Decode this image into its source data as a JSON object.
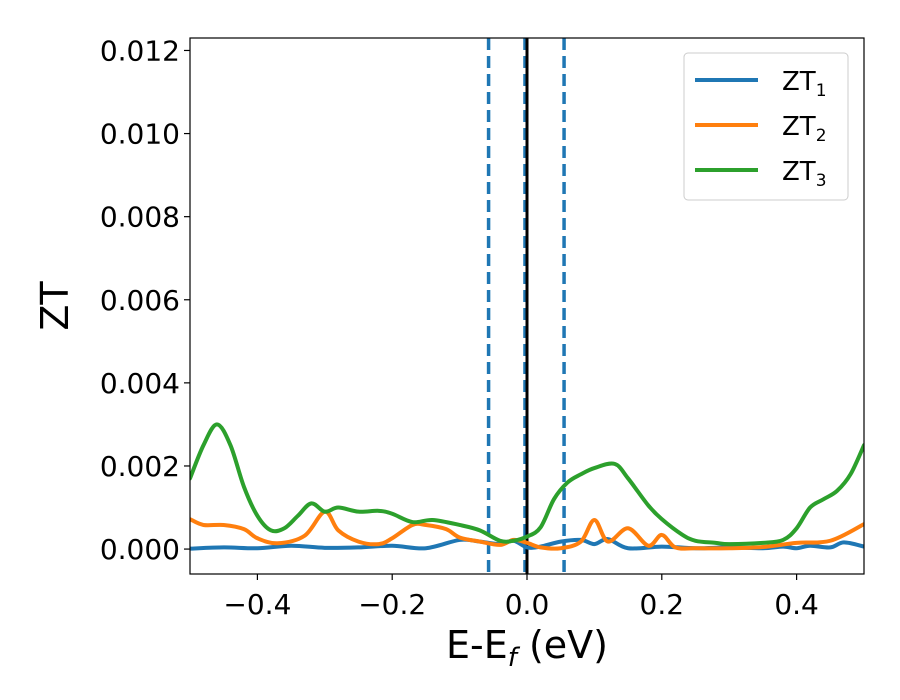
{
  "chart_data": {
    "type": "line",
    "xlabel": "E-E",
    "xlabel_sub": "f",
    "xlabel_unit": " (eV)",
    "ylabel": "ZT",
    "xlim": [
      -0.5,
      0.5
    ],
    "ylim": [
      -0.0006,
      0.0123
    ],
    "x_ticks": [
      -0.4,
      -0.2,
      0.0,
      0.2,
      0.4
    ],
    "x_tick_labels": [
      "−0.4",
      "−0.2",
      "0.0",
      "0.2",
      "0.4"
    ],
    "y_ticks": [
      0.0,
      0.002,
      0.004,
      0.006,
      0.008,
      0.01,
      0.012
    ],
    "y_tick_labels": [
      "0.000",
      "0.002",
      "0.004",
      "0.006",
      "0.008",
      "0.010",
      "0.012"
    ],
    "grid": false,
    "legend_position": "top-right",
    "vertical_lines": [
      {
        "x": -0.057,
        "style": "dashed",
        "color": "#1f77b4"
      },
      {
        "x": -0.003,
        "style": "dashed",
        "color": "#1f77b4"
      },
      {
        "x": 0.0,
        "style": "solid",
        "color": "#000000"
      },
      {
        "x": 0.055,
        "style": "dashed",
        "color": "#1f77b4"
      }
    ],
    "series": [
      {
        "name": "ZT",
        "name_sub": "1",
        "color": "#1f77b4",
        "x": [
          -0.5,
          -0.45,
          -0.4,
          -0.35,
          -0.3,
          -0.25,
          -0.2,
          -0.15,
          -0.1,
          -0.07,
          -0.04,
          -0.02,
          0.0,
          0.02,
          0.05,
          0.08,
          0.1,
          0.12,
          0.15,
          0.2,
          0.25,
          0.3,
          0.35,
          0.38,
          0.4,
          0.42,
          0.45,
          0.47,
          0.5
        ],
        "y": [
          1e-05,
          4e-05,
          2e-05,
          8e-05,
          3e-05,
          4e-05,
          8e-05,
          2e-05,
          0.00022,
          0.00018,
          0.00012,
          0.0002,
          4e-05,
          6e-05,
          0.00018,
          0.00022,
          0.00012,
          0.00024,
          2e-05,
          6e-05,
          2e-05,
          4e-05,
          2e-05,
          6e-05,
          2e-05,
          8e-05,
          4e-05,
          0.00016,
          6e-05
        ]
      },
      {
        "name": "ZT",
        "name_sub": "2",
        "color": "#ff7f0e",
        "x": [
          -0.5,
          -0.48,
          -0.45,
          -0.42,
          -0.4,
          -0.37,
          -0.33,
          -0.3,
          -0.28,
          -0.25,
          -0.22,
          -0.2,
          -0.17,
          -0.15,
          -0.12,
          -0.1,
          -0.07,
          -0.04,
          -0.02,
          0.0,
          0.02,
          0.05,
          0.08,
          0.1,
          0.12,
          0.15,
          0.18,
          0.2,
          0.22,
          0.25,
          0.3,
          0.35,
          0.4,
          0.45,
          0.5
        ],
        "y": [
          0.00072,
          0.00058,
          0.00058,
          0.00048,
          0.00026,
          0.00014,
          0.00032,
          0.0009,
          0.00045,
          0.00018,
          0.00012,
          0.00026,
          0.00058,
          0.00058,
          0.00048,
          0.00028,
          0.00018,
          0.0001,
          0.00022,
          0.00015,
          4e-05,
          2e-05,
          0.00018,
          0.0007,
          0.00018,
          0.0005,
          8e-05,
          0.00034,
          4e-05,
          2e-05,
          2e-05,
          5e-05,
          0.00015,
          0.0002,
          0.0006
        ]
      },
      {
        "name": "ZT",
        "name_sub": "3",
        "color": "#2ca02c",
        "x": [
          -0.5,
          -0.48,
          -0.46,
          -0.44,
          -0.42,
          -0.4,
          -0.38,
          -0.36,
          -0.34,
          -0.32,
          -0.3,
          -0.28,
          -0.25,
          -0.22,
          -0.2,
          -0.17,
          -0.14,
          -0.1,
          -0.07,
          -0.04,
          -0.02,
          0.0,
          0.02,
          0.04,
          0.06,
          0.08,
          0.1,
          0.13,
          0.15,
          0.18,
          0.2,
          0.23,
          0.25,
          0.28,
          0.3,
          0.35,
          0.38,
          0.4,
          0.42,
          0.44,
          0.46,
          0.48,
          0.5
        ],
        "y": [
          0.0017,
          0.0025,
          0.003,
          0.0025,
          0.0015,
          0.0008,
          0.00045,
          0.0005,
          0.0008,
          0.0011,
          0.0009,
          0.001,
          0.0009,
          0.00092,
          0.00085,
          0.00065,
          0.0007,
          0.00058,
          0.00045,
          0.0002,
          0.0002,
          0.0003,
          0.00052,
          0.0012,
          0.0016,
          0.0018,
          0.00195,
          0.00205,
          0.0017,
          0.00105,
          0.00072,
          0.00035,
          0.0002,
          0.00015,
          0.00012,
          0.00015,
          0.00022,
          0.0005,
          0.001,
          0.0012,
          0.0014,
          0.0018,
          0.0025
        ]
      }
    ]
  }
}
